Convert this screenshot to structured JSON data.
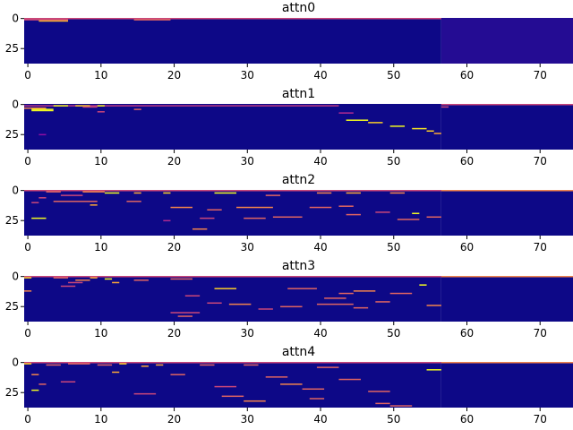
{
  "chart_data": {
    "type": "heatmap",
    "colormap": "plasma",
    "background_color": "#0d0887",
    "highlight_color": "#f0f921",
    "panels": [
      {
        "title": "attn0",
        "xlim": [
          0,
          75
        ],
        "ylim": [
          0,
          38
        ],
        "xticks": [
          "0",
          "10",
          "20",
          "30",
          "40",
          "50",
          "60",
          "70"
        ],
        "yticks": [
          "0",
          "25"
        ],
        "content_end_col": 57,
        "padding_shade": "#240c93",
        "segments": [
          {
            "row": 0,
            "x0": 0,
            "x1": 57,
            "v": 0.5
          },
          {
            "row": 1,
            "x0": 0,
            "x1": 6,
            "v": 0.5
          },
          {
            "row": 1,
            "x0": 15,
            "x1": 20,
            "v": 0.6
          },
          {
            "row": 2,
            "x0": 2,
            "x1": 6,
            "v": 0.85
          }
        ]
      },
      {
        "title": "attn1",
        "xlim": [
          0,
          75
        ],
        "ylim": [
          0,
          38
        ],
        "xticks": [
          "0",
          "10",
          "20",
          "30",
          "40",
          "50",
          "60",
          "70"
        ],
        "yticks": [
          "0",
          "25"
        ],
        "content_end_col": 57,
        "padding_shade": "#0d0887",
        "segments": [
          {
            "row": 0,
            "x0": 57,
            "x1": 75,
            "v": 0.5
          },
          {
            "row": 1,
            "x0": 0,
            "x1": 43,
            "v": 0.45
          },
          {
            "row": 1,
            "x0": 4,
            "x1": 6,
            "v": 1.0
          },
          {
            "row": 1,
            "x0": 7,
            "x1": 9,
            "v": 0.9
          },
          {
            "row": 1,
            "x0": 10,
            "x1": 11,
            "v": 1.0
          },
          {
            "row": 2,
            "x0": 8,
            "x1": 10,
            "v": 0.5
          },
          {
            "row": 2,
            "x0": 57,
            "x1": 58,
            "v": 0.5
          },
          {
            "row": 3,
            "x0": 0,
            "x1": 3,
            "v": 0.7
          },
          {
            "row": 4,
            "x0": 1,
            "x1": 4,
            "v": 1.0
          },
          {
            "row": 4,
            "x0": 15,
            "x1": 16,
            "v": 0.6
          },
          {
            "row": 5,
            "x0": 1,
            "x1": 4,
            "v": 1.0
          },
          {
            "row": 6,
            "x0": 10,
            "x1": 11,
            "v": 0.5
          },
          {
            "row": 7,
            "x0": 43,
            "x1": 45,
            "v": 0.4
          },
          {
            "row": 13,
            "x0": 44,
            "x1": 47,
            "v": 1.0
          },
          {
            "row": 15,
            "x0": 47,
            "x1": 49,
            "v": 0.9
          },
          {
            "row": 18,
            "x0": 50,
            "x1": 52,
            "v": 1.0
          },
          {
            "row": 20,
            "x0": 53,
            "x1": 55,
            "v": 0.95
          },
          {
            "row": 22,
            "x0": 55,
            "x1": 56,
            "v": 0.9
          },
          {
            "row": 24,
            "x0": 56,
            "x1": 57,
            "v": 0.8
          },
          {
            "row": 25,
            "x0": 2,
            "x1": 3,
            "v": 0.3
          }
        ]
      },
      {
        "title": "attn2",
        "xlim": [
          0,
          75
        ],
        "ylim": [
          0,
          38
        ],
        "xticks": [
          "0",
          "10",
          "20",
          "30",
          "40",
          "50",
          "60",
          "70"
        ],
        "yticks": [
          "0",
          "25"
        ],
        "content_end_col": 57,
        "padding_shade": "#0d0887",
        "segments": [
          {
            "row": 0,
            "x0": 0,
            "x1": 57,
            "v": 0.5
          },
          {
            "row": 0,
            "x0": 57,
            "x1": 75,
            "v": 0.7
          },
          {
            "row": 1,
            "x0": 3,
            "x1": 5,
            "v": 0.6
          },
          {
            "row": 1,
            "x0": 8,
            "x1": 11,
            "v": 0.7
          },
          {
            "row": 2,
            "x0": 11,
            "x1": 13,
            "v": 1.0
          },
          {
            "row": 2,
            "x0": 15,
            "x1": 16,
            "v": 0.8
          },
          {
            "row": 2,
            "x0": 19,
            "x1": 20,
            "v": 0.9
          },
          {
            "row": 2,
            "x0": 26,
            "x1": 29,
            "v": 1.0
          },
          {
            "row": 2,
            "x0": 40,
            "x1": 42,
            "v": 0.7
          },
          {
            "row": 2,
            "x0": 44,
            "x1": 46,
            "v": 0.8
          },
          {
            "row": 2,
            "x0": 50,
            "x1": 52,
            "v": 0.7
          },
          {
            "row": 4,
            "x0": 5,
            "x1": 8,
            "v": 0.5
          },
          {
            "row": 4,
            "x0": 33,
            "x1": 35,
            "v": 0.6
          },
          {
            "row": 6,
            "x0": 2,
            "x1": 3,
            "v": 0.5
          },
          {
            "row": 9,
            "x0": 4,
            "x1": 10,
            "v": 0.6
          },
          {
            "row": 9,
            "x0": 14,
            "x1": 16,
            "v": 0.6
          },
          {
            "row": 10,
            "x0": 1,
            "x1": 2,
            "v": 0.5
          },
          {
            "row": 12,
            "x0": 9,
            "x1": 10,
            "v": 0.8
          },
          {
            "row": 13,
            "x0": 43,
            "x1": 45,
            "v": 0.6
          },
          {
            "row": 14,
            "x0": 20,
            "x1": 23,
            "v": 0.7
          },
          {
            "row": 14,
            "x0": 29,
            "x1": 34,
            "v": 0.7
          },
          {
            "row": 14,
            "x0": 39,
            "x1": 42,
            "v": 0.6
          },
          {
            "row": 16,
            "x0": 25,
            "x1": 27,
            "v": 0.6
          },
          {
            "row": 18,
            "x0": 48,
            "x1": 50,
            "v": 0.5
          },
          {
            "row": 19,
            "x0": 53,
            "x1": 54,
            "v": 1.0
          },
          {
            "row": 20,
            "x0": 44,
            "x1": 46,
            "v": 0.6
          },
          {
            "row": 22,
            "x0": 34,
            "x1": 38,
            "v": 0.6
          },
          {
            "row": 22,
            "x0": 55,
            "x1": 57,
            "v": 0.6
          },
          {
            "row": 23,
            "x0": 1,
            "x1": 3,
            "v": 1.0
          },
          {
            "row": 23,
            "x0": 24,
            "x1": 26,
            "v": 0.5
          },
          {
            "row": 23,
            "x0": 30,
            "x1": 33,
            "v": 0.6
          },
          {
            "row": 24,
            "x0": 51,
            "x1": 54,
            "v": 0.6
          },
          {
            "row": 25,
            "x0": 19,
            "x1": 20,
            "v": 0.4
          },
          {
            "row": 32,
            "x0": 23,
            "x1": 25,
            "v": 0.7
          }
        ]
      },
      {
        "title": "attn3",
        "xlim": [
          0,
          75
        ],
        "ylim": [
          0,
          38
        ],
        "xticks": [
          "0",
          "10",
          "20",
          "30",
          "40",
          "50",
          "60",
          "70"
        ],
        "yticks": [
          "0",
          "25"
        ],
        "content_end_col": 57,
        "padding_shade": "#0d0887",
        "segments": [
          {
            "row": 0,
            "x0": 0,
            "x1": 57,
            "v": 0.5
          },
          {
            "row": 0,
            "x0": 57,
            "x1": 75,
            "v": 0.7
          },
          {
            "row": 1,
            "x0": 0,
            "x1": 1,
            "v": 0.9
          },
          {
            "row": 1,
            "x0": 4,
            "x1": 6,
            "v": 0.6
          },
          {
            "row": 1,
            "x0": 9,
            "x1": 10,
            "v": 0.8
          },
          {
            "row": 2,
            "x0": 11,
            "x1": 12,
            "v": 1.0
          },
          {
            "row": 2,
            "x0": 20,
            "x1": 23,
            "v": 0.6
          },
          {
            "row": 3,
            "x0": 7,
            "x1": 9,
            "v": 0.7
          },
          {
            "row": 3,
            "x0": 15,
            "x1": 17,
            "v": 0.6
          },
          {
            "row": 5,
            "x0": 6,
            "x1": 8,
            "v": 0.5
          },
          {
            "row": 5,
            "x0": 12,
            "x1": 13,
            "v": 0.8
          },
          {
            "row": 7,
            "x0": 54,
            "x1": 55,
            "v": 1.0
          },
          {
            "row": 8,
            "x0": 5,
            "x1": 7,
            "v": 0.5
          },
          {
            "row": 10,
            "x0": 26,
            "x1": 29,
            "v": 0.9
          },
          {
            "row": 10,
            "x0": 36,
            "x1": 40,
            "v": 0.6
          },
          {
            "row": 12,
            "x0": 0,
            "x1": 1,
            "v": 0.7
          },
          {
            "row": 12,
            "x0": 45,
            "x1": 48,
            "v": 0.7
          },
          {
            "row": 14,
            "x0": 43,
            "x1": 45,
            "v": 0.6
          },
          {
            "row": 14,
            "x0": 50,
            "x1": 53,
            "v": 0.6
          },
          {
            "row": 16,
            "x0": 22,
            "x1": 24,
            "v": 0.5
          },
          {
            "row": 18,
            "x0": 41,
            "x1": 44,
            "v": 0.6
          },
          {
            "row": 21,
            "x0": 48,
            "x1": 50,
            "v": 0.6
          },
          {
            "row": 22,
            "x0": 25,
            "x1": 27,
            "v": 0.5
          },
          {
            "row": 23,
            "x0": 28,
            "x1": 31,
            "v": 0.7
          },
          {
            "row": 23,
            "x0": 40,
            "x1": 45,
            "v": 0.6
          },
          {
            "row": 24,
            "x0": 55,
            "x1": 57,
            "v": 0.7
          },
          {
            "row": 25,
            "x0": 35,
            "x1": 38,
            "v": 0.6
          },
          {
            "row": 26,
            "x0": 45,
            "x1": 47,
            "v": 0.6
          },
          {
            "row": 27,
            "x0": 32,
            "x1": 34,
            "v": 0.5
          },
          {
            "row": 30,
            "x0": 20,
            "x1": 24,
            "v": 0.5
          },
          {
            "row": 33,
            "x0": 21,
            "x1": 23,
            "v": 0.6
          }
        ]
      },
      {
        "title": "attn4",
        "xlim": [
          0,
          75
        ],
        "ylim": [
          0,
          38
        ],
        "xticks": [
          "0",
          "10",
          "20",
          "30",
          "40",
          "50",
          "60",
          "70"
        ],
        "yticks": [
          "0",
          "25"
        ],
        "content_end_col": 57,
        "padding_shade": "#0d0887",
        "segments": [
          {
            "row": 0,
            "x0": 0,
            "x1": 57,
            "v": 0.5
          },
          {
            "row": 0,
            "x0": 57,
            "x1": 75,
            "v": 0.7
          },
          {
            "row": 1,
            "x0": 0,
            "x1": 1,
            "v": 0.9
          },
          {
            "row": 1,
            "x0": 6,
            "x1": 9,
            "v": 0.6
          },
          {
            "row": 1,
            "x0": 13,
            "x1": 14,
            "v": 0.9
          },
          {
            "row": 2,
            "x0": 3,
            "x1": 5,
            "v": 0.6
          },
          {
            "row": 2,
            "x0": 10,
            "x1": 12,
            "v": 0.6
          },
          {
            "row": 2,
            "x0": 18,
            "x1": 19,
            "v": 0.8
          },
          {
            "row": 2,
            "x0": 24,
            "x1": 26,
            "v": 0.6
          },
          {
            "row": 2,
            "x0": 30,
            "x1": 32,
            "v": 0.6
          },
          {
            "row": 3,
            "x0": 16,
            "x1": 17,
            "v": 0.8
          },
          {
            "row": 4,
            "x0": 40,
            "x1": 43,
            "v": 0.6
          },
          {
            "row": 6,
            "x0": 55,
            "x1": 57,
            "v": 1.0
          },
          {
            "row": 8,
            "x0": 12,
            "x1": 13,
            "v": 0.8
          },
          {
            "row": 10,
            "x0": 1,
            "x1": 2,
            "v": 0.7
          },
          {
            "row": 10,
            "x0": 20,
            "x1": 22,
            "v": 0.6
          },
          {
            "row": 12,
            "x0": 33,
            "x1": 36,
            "v": 0.6
          },
          {
            "row": 14,
            "x0": 43,
            "x1": 46,
            "v": 0.6
          },
          {
            "row": 16,
            "x0": 5,
            "x1": 7,
            "v": 0.5
          },
          {
            "row": 18,
            "x0": 2,
            "x1": 3,
            "v": 0.6
          },
          {
            "row": 18,
            "x0": 35,
            "x1": 38,
            "v": 0.7
          },
          {
            "row": 20,
            "x0": 26,
            "x1": 29,
            "v": 0.5
          },
          {
            "row": 22,
            "x0": 38,
            "x1": 41,
            "v": 0.6
          },
          {
            "row": 23,
            "x0": 1,
            "x1": 2,
            "v": 1.0
          },
          {
            "row": 24,
            "x0": 47,
            "x1": 50,
            "v": 0.6
          },
          {
            "row": 26,
            "x0": 15,
            "x1": 18,
            "v": 0.5
          },
          {
            "row": 28,
            "x0": 27,
            "x1": 30,
            "v": 0.6
          },
          {
            "row": 30,
            "x0": 39,
            "x1": 41,
            "v": 0.6
          },
          {
            "row": 32,
            "x0": 30,
            "x1": 33,
            "v": 0.7
          },
          {
            "row": 34,
            "x0": 48,
            "x1": 50,
            "v": 0.6
          },
          {
            "row": 36,
            "x0": 50,
            "x1": 53,
            "v": 0.6
          }
        ]
      }
    ]
  }
}
